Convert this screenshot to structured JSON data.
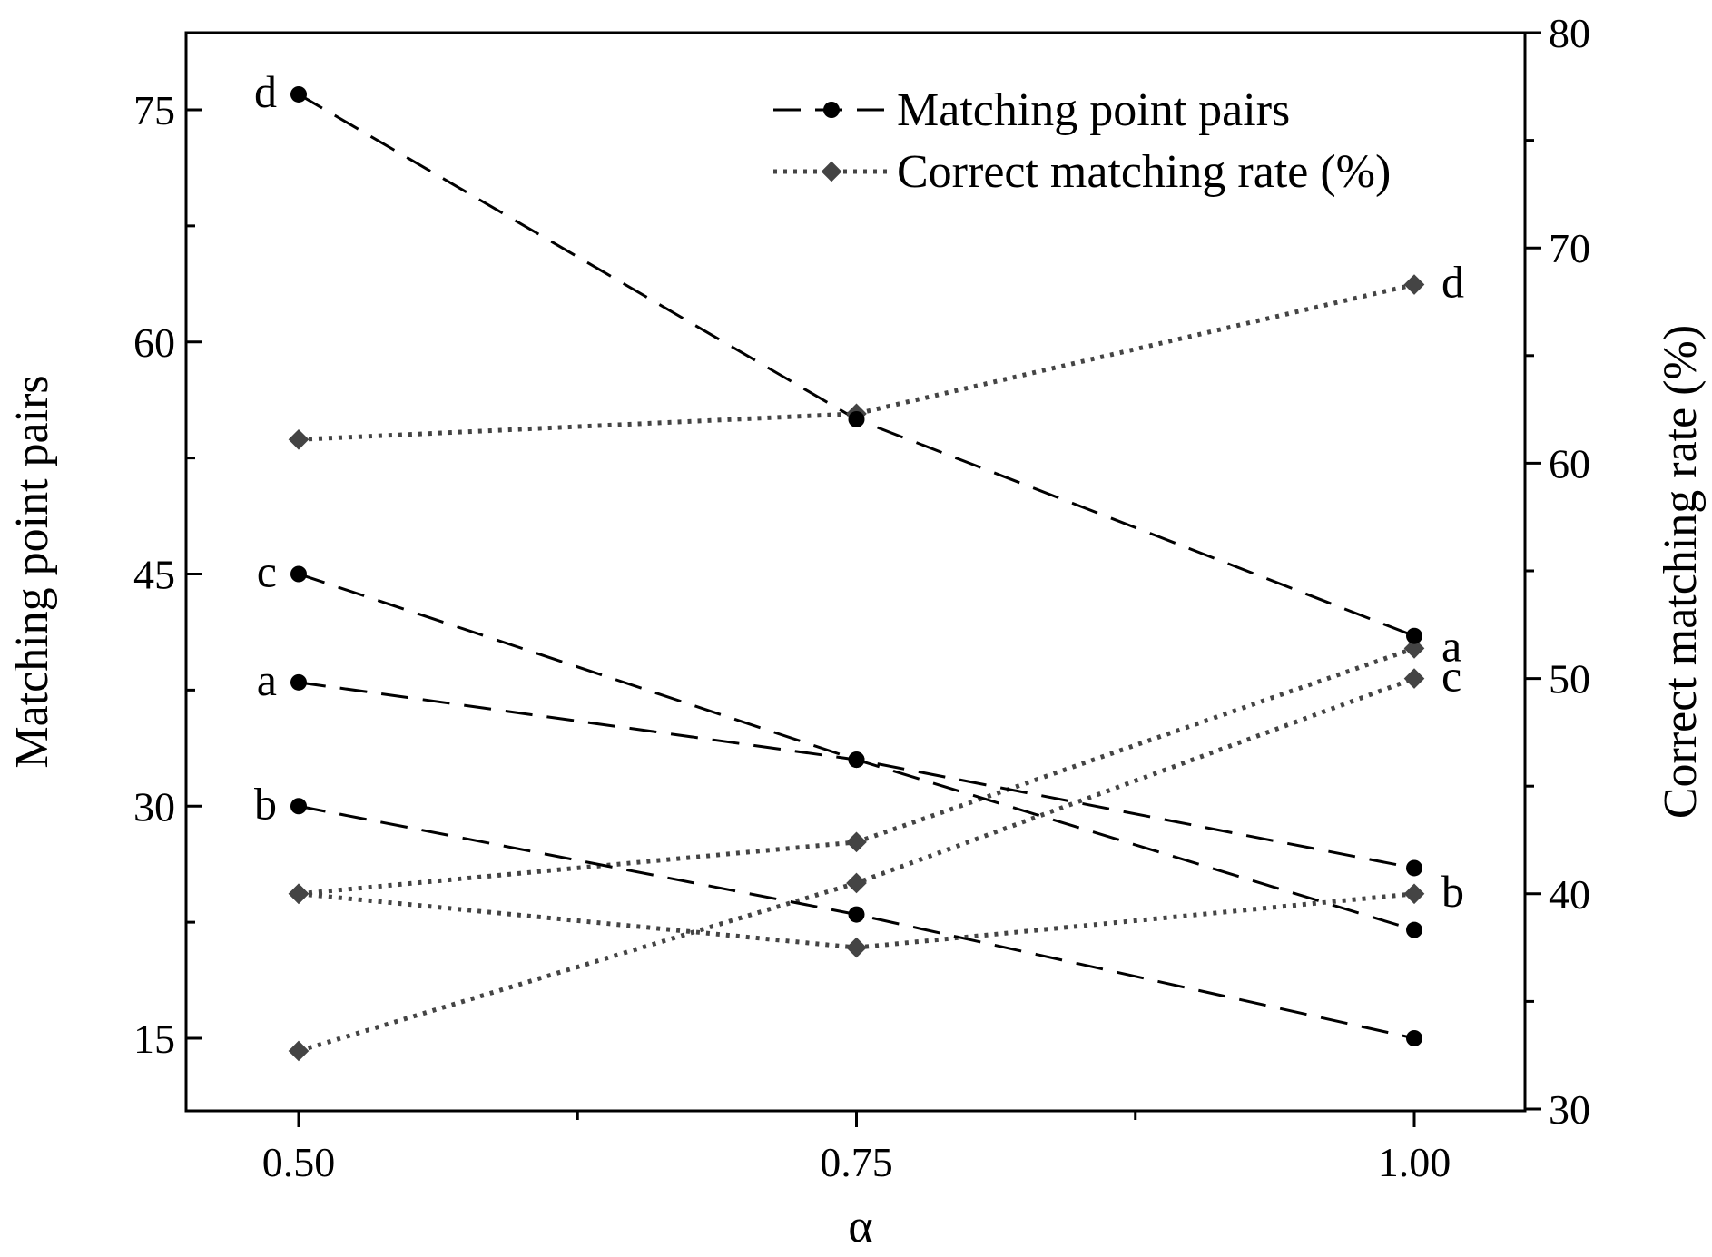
{
  "chart_data": {
    "type": "line",
    "title": "",
    "xlabel": "α",
    "ylabel": "Matching point pairs",
    "y2label": "Correct matching rate (%)",
    "xlim": [
      0.4,
      1.05
    ],
    "ylim": [
      10,
      80
    ],
    "y2lim": [
      30,
      80
    ],
    "x": [
      0.5,
      0.75,
      1.0
    ],
    "x_tick_labels": [
      "0.50",
      "0.75",
      "1.00"
    ],
    "y_ticks": [
      15,
      30,
      45,
      60,
      75
    ],
    "y2_ticks": [
      30,
      40,
      50,
      60,
      70,
      80
    ],
    "grid": false,
    "legend_position": "top-right",
    "legend": [
      {
        "name": "Matching point pairs",
        "style": "dashed",
        "marker": "circle"
      },
      {
        "name": "Correct matching rate (%)",
        "style": "dotted",
        "marker": "diamond"
      }
    ],
    "colors": {
      "pairs": "#000000",
      "rate": "#444444"
    },
    "pairs_series": [
      {
        "label": "a",
        "values": [
          38,
          33,
          26
        ]
      },
      {
        "label": "b",
        "values": [
          30,
          23,
          15
        ]
      },
      {
        "label": "c",
        "values": [
          45,
          33,
          22
        ]
      },
      {
        "label": "d",
        "values": [
          76,
          55,
          41
        ]
      }
    ],
    "rate_series": [
      {
        "label": "a",
        "values": [
          40,
          42.4,
          51.4
        ]
      },
      {
        "label": "b",
        "values": [
          40,
          37.5,
          40
        ]
      },
      {
        "label": "c",
        "values": [
          32.7,
          40.5,
          50
        ]
      },
      {
        "label": "d",
        "values": [
          61.1,
          62.3,
          68.3
        ]
      }
    ]
  }
}
